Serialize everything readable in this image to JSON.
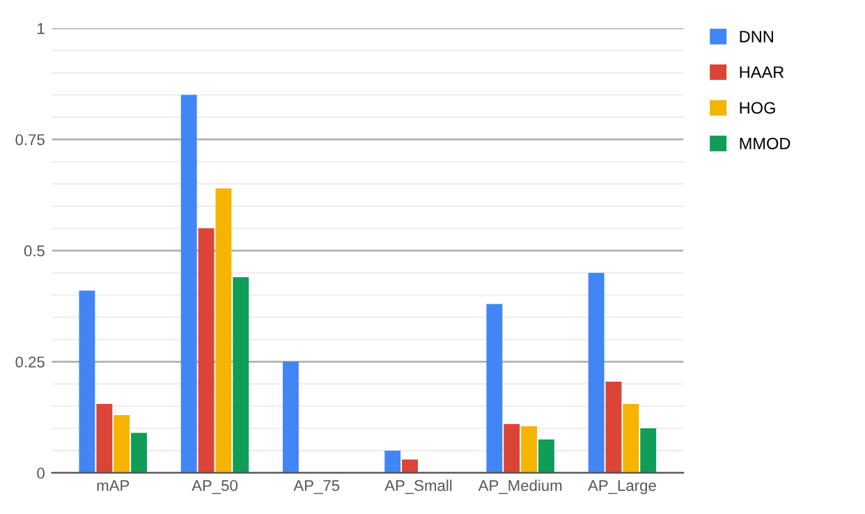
{
  "chart_data": {
    "type": "bar",
    "categories": [
      "mAP",
      "AP_50",
      "AP_75",
      "AP_Small",
      "AP_Medium",
      "AP_Large"
    ],
    "series": [
      {
        "name": "DNN",
        "color": "#4285f4",
        "values": [
          0.41,
          0.85,
          0.25,
          0.05,
          0.38,
          0.45
        ]
      },
      {
        "name": "HAAR",
        "color": "#db4437",
        "values": [
          0.155,
          0.55,
          0,
          0.03,
          0.11,
          0.205
        ]
      },
      {
        "name": "HOG",
        "color": "#f4b400",
        "values": [
          0.13,
          0.64,
          0,
          0,
          0.105,
          0.155
        ]
      },
      {
        "name": "MMOD",
        "color": "#0f9d58",
        "values": [
          0.09,
          0.44,
          0,
          0,
          0.075,
          0.1
        ]
      }
    ],
    "ylim": [
      0,
      1
    ],
    "yticks": [
      0,
      {
        "value": 0.05,
        "label": null
      },
      {
        "value": 0.1,
        "label": null
      },
      {
        "value": 0.15,
        "label": null
      },
      {
        "value": 0.2,
        "label": null
      },
      0.25,
      {
        "value": 0.3,
        "label": null
      },
      {
        "value": 0.35,
        "label": null
      },
      {
        "value": 0.4,
        "label": null
      },
      {
        "value": 0.45,
        "label": null
      },
      0.5,
      {
        "value": 0.55,
        "label": null
      },
      {
        "value": 0.6,
        "label": null
      },
      {
        "value": 0.65,
        "label": null
      },
      {
        "value": 0.7,
        "label": null
      },
      0.75,
      {
        "value": 0.8,
        "label": null
      },
      {
        "value": 0.85,
        "label": null
      },
      {
        "value": 0.9,
        "label": null
      },
      {
        "value": 0.95,
        "label": null
      },
      1
    ],
    "grid": "y",
    "legend": "top right"
  }
}
